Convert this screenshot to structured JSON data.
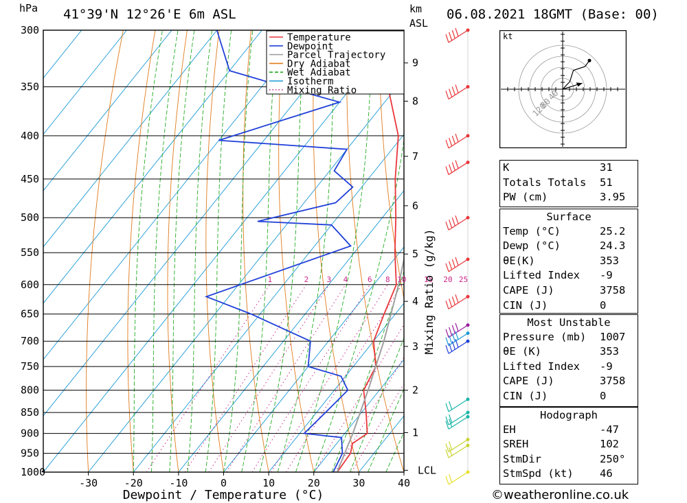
{
  "header": {
    "pressure_unit": "hPa",
    "location": "41°39'N  12°26'E  6m  ASL",
    "height_unit": "km",
    "height_unit2": "ASL",
    "datetime": "06.08.2021  18GMT  (Base: 00)"
  },
  "chart_data": {
    "type": "line",
    "title": "",
    "xlabel": "Dewpoint / Temperature (°C)",
    "ylabel": "hPa",
    "ylabel_right": "Mixing Ratio (g/kg)",
    "xlim": [
      -40,
      40
    ],
    "ylim": [
      1000,
      300
    ],
    "y_scale": "log (skew-T)",
    "x_ticks": [
      "-30",
      "-20",
      "-10",
      "0",
      "10",
      "20",
      "30",
      "40"
    ],
    "pressure_levels": [
      "300",
      "350",
      "400",
      "450",
      "500",
      "550",
      "600",
      "650",
      "700",
      "750",
      "800",
      "850",
      "900",
      "950",
      "1000"
    ],
    "height_ticks": [
      {
        "label": "9",
        "p": 328
      },
      {
        "label": "8",
        "p": 364
      },
      {
        "label": "7",
        "p": 423
      },
      {
        "label": "6",
        "p": 484
      },
      {
        "label": "5",
        "p": 552
      },
      {
        "label": "4",
        "p": 628
      },
      {
        "label": "3",
        "p": 710
      },
      {
        "label": "2",
        "p": 800
      },
      {
        "label": "1",
        "p": 898
      },
      {
        "label": "LCL",
        "p": 995
      }
    ],
    "mixing_ratio_labels": [
      "1",
      "2",
      "3",
      "4",
      "6",
      "8",
      "10",
      "15",
      "20",
      "25"
    ],
    "legend": [
      "Temperature",
      "Dewpoint",
      "Parcel Trajectory",
      "Dry Adiabat",
      "Wet Adiabat",
      "Isotherm",
      "Mixing Ratio"
    ],
    "legend_position": "top-right",
    "colors": {
      "temperature": "#e8363a",
      "dewpoint": "#2040d8",
      "parcel": "#a0a0a0",
      "dry_adiabat": "#e07a1a",
      "wet_adiabat": "#22aa22",
      "isotherm": "#1b9ad6",
      "mixing_ratio": "#cc2288"
    },
    "series": [
      {
        "name": "Temperature",
        "points": [
          {
            "p": 1000,
            "t": 25.2
          },
          {
            "p": 950,
            "t": 24.8
          },
          {
            "p": 925,
            "t": 23.5
          },
          {
            "p": 900,
            "t": 25
          },
          {
            "p": 850,
            "t": 21
          },
          {
            "p": 800,
            "t": 16.5
          },
          {
            "p": 750,
            "t": 15
          },
          {
            "p": 700,
            "t": 10
          },
          {
            "p": 650,
            "t": 7.5
          },
          {
            "p": 600,
            "t": 5
          },
          {
            "p": 550,
            "t": -1
          },
          {
            "p": 500,
            "t": -7
          },
          {
            "p": 450,
            "t": -14
          },
          {
            "p": 400,
            "t": -21
          },
          {
            "p": 350,
            "t": -32
          },
          {
            "p": 300,
            "t": -42
          }
        ]
      },
      {
        "name": "Dewpoint",
        "points": [
          {
            "p": 1000,
            "t": 24.3
          },
          {
            "p": 950,
            "t": 23
          },
          {
            "p": 910,
            "t": 20
          },
          {
            "p": 900,
            "t": 11
          },
          {
            "p": 850,
            "t": 12
          },
          {
            "p": 800,
            "t": 13
          },
          {
            "p": 770,
            "t": 9
          },
          {
            "p": 750,
            "t": 0
          },
          {
            "p": 700,
            "t": -4
          },
          {
            "p": 650,
            "t": -22
          },
          {
            "p": 620,
            "t": -35
          },
          {
            "p": 540,
            "t": -12
          },
          {
            "p": 510,
            "t": -20
          },
          {
            "p": 505,
            "t": -37
          },
          {
            "p": 480,
            "t": -23
          },
          {
            "p": 460,
            "t": -22
          },
          {
            "p": 440,
            "t": -29
          },
          {
            "p": 415,
            "t": -30
          },
          {
            "p": 405,
            "t": -60
          },
          {
            "p": 365,
            "t": -40
          },
          {
            "p": 350,
            "t": -55
          },
          {
            "p": 335,
            "t": -70
          },
          {
            "p": 300,
            "t": -80
          }
        ]
      },
      {
        "name": "Parcel Trajectory",
        "points": [
          {
            "p": 1000,
            "t": 25.2
          },
          {
            "p": 995,
            "t": 25
          },
          {
            "p": 900,
            "t": 21.8
          },
          {
            "p": 800,
            "t": 17.5
          },
          {
            "p": 700,
            "t": 12.3
          },
          {
            "p": 600,
            "t": 5.5
          },
          {
            "p": 500,
            "t": -3.2
          },
          {
            "p": 400,
            "t": -15
          },
          {
            "p": 365,
            "t": -20
          }
        ]
      }
    ],
    "wind_barbs": [
      {
        "p": 300,
        "color": "#e8363a"
      },
      {
        "p": 350,
        "color": "#e8363a"
      },
      {
        "p": 400,
        "color": "#e8363a"
      },
      {
        "p": 430,
        "color": "#e8363a"
      },
      {
        "p": 500,
        "color": "#e8363a"
      },
      {
        "p": 560,
        "color": "#e8363a"
      },
      {
        "p": 620,
        "color": "#e8363a"
      },
      {
        "p": 670,
        "color": "#9a1aa0"
      },
      {
        "p": 685,
        "color": "#1b9ad6"
      },
      {
        "p": 700,
        "color": "#2040d8"
      },
      {
        "p": 820,
        "color": "#19b5a8"
      },
      {
        "p": 850,
        "color": "#19b5a8"
      },
      {
        "p": 860,
        "color": "#19b5a8"
      },
      {
        "p": 915,
        "color": "#c8d430"
      },
      {
        "p": 930,
        "color": "#c8d430"
      },
      {
        "p": 1000,
        "color": "#e8e030"
      }
    ],
    "hodograph": {
      "unit": "kt",
      "ring_labels": [
        "40",
        "80",
        "120"
      ],
      "trace": [
        [
          0,
          0
        ],
        [
          8,
          10
        ],
        [
          12,
          25
        ],
        [
          25,
          30
        ],
        [
          30,
          38
        ]
      ],
      "storm_motion": [
        [
          0,
          0
        ],
        [
          22,
          8
        ]
      ]
    }
  },
  "indices": {
    "rows": [
      {
        "k": "K",
        "v": "31"
      },
      {
        "k": "Totals Totals",
        "v": "51"
      },
      {
        "k": "PW (cm)",
        "v": "3.95"
      }
    ]
  },
  "surface": {
    "title": "Surface",
    "rows": [
      {
        "k": "Temp (°C)",
        "v": "25.2"
      },
      {
        "k": "Dewp (°C)",
        "v": "24.3"
      },
      {
        "k": "θE(K)",
        "v": "353"
      },
      {
        "k": "Lifted Index",
        "v": "-9"
      },
      {
        "k": "CAPE (J)",
        "v": "3758"
      },
      {
        "k": "CIN (J)",
        "v": "0"
      }
    ]
  },
  "most_unstable": {
    "title": "Most Unstable",
    "rows": [
      {
        "k": "Pressure (mb)",
        "v": "1007"
      },
      {
        "k": "θE (K)",
        "v": "353"
      },
      {
        "k": "Lifted Index",
        "v": "-9"
      },
      {
        "k": "CAPE (J)",
        "v": "3758"
      },
      {
        "k": "CIN (J)",
        "v": "0"
      }
    ]
  },
  "hodograph_table": {
    "title": "Hodograph",
    "rows": [
      {
        "k": "EH",
        "v": "-47"
      },
      {
        "k": "SREH",
        "v": "102"
      },
      {
        "k": "StmDir",
        "v": "250°"
      },
      {
        "k": "StmSpd (kt)",
        "v": "46"
      }
    ]
  },
  "footer": {
    "copyright": "©weatheronline.co.uk"
  }
}
